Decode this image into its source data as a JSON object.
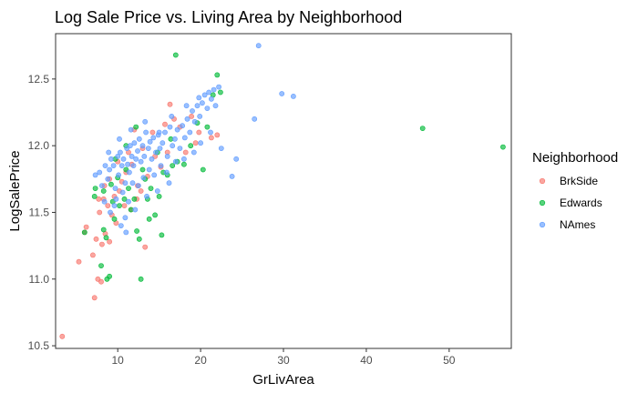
{
  "chart_data": {
    "type": "scatter",
    "title": "Log Sale Price vs. Living Area by Neighborhood",
    "xlabel": "GrLivArea",
    "ylabel": "LogSalePrice",
    "xlim": [
      2.5,
      57.5
    ],
    "ylim": [
      10.48,
      12.84
    ],
    "x_ticks": [
      10,
      20,
      30,
      40,
      50
    ],
    "y_ticks": [
      10.5,
      11.0,
      11.5,
      12.0,
      12.5
    ],
    "y_tick_labels": [
      "10.5",
      "11.0",
      "11.5",
      "12.0",
      "12.5"
    ],
    "grid": false,
    "legend": {
      "title": "Neighborhood",
      "placement": "right"
    },
    "series": [
      {
        "name": "BrkSide",
        "color": "#F8766D",
        "points": [
          [
            3.3,
            10.57
          ],
          [
            5.3,
            11.13
          ],
          [
            6.2,
            11.39
          ],
          [
            6.0,
            11.35
          ],
          [
            7.0,
            11.18
          ],
          [
            7.2,
            10.86
          ],
          [
            7.6,
            11.0
          ],
          [
            8.0,
            10.98
          ],
          [
            7.4,
            11.3
          ],
          [
            8.1,
            11.26
          ],
          [
            8.5,
            11.34
          ],
          [
            9.0,
            11.28
          ],
          [
            7.8,
            11.5
          ],
          [
            8.3,
            11.6
          ],
          [
            8.8,
            11.55
          ],
          [
            9.3,
            11.48
          ],
          [
            7.7,
            11.6
          ],
          [
            8.4,
            11.7
          ],
          [
            9.6,
            11.62
          ],
          [
            10.2,
            11.66
          ],
          [
            9.0,
            11.75
          ],
          [
            10.5,
            11.73
          ],
          [
            11.0,
            11.8
          ],
          [
            11.7,
            11.86
          ],
          [
            12.4,
            11.7
          ],
          [
            12.8,
            11.66
          ],
          [
            13.6,
            11.77
          ],
          [
            14.5,
            11.92
          ],
          [
            15.2,
            11.84
          ],
          [
            16.0,
            11.95
          ],
          [
            16.3,
            12.31
          ],
          [
            16.8,
            12.2
          ],
          [
            17.5,
            12.14
          ],
          [
            18.2,
            11.95
          ],
          [
            19.4,
            12.02
          ],
          [
            10.8,
            11.55
          ],
          [
            11.6,
            11.52
          ],
          [
            12.3,
            11.6
          ],
          [
            13.3,
            11.24
          ],
          [
            9.8,
            11.42
          ],
          [
            14.2,
            12.1
          ],
          [
            15.7,
            12.16
          ],
          [
            12.0,
            12.12
          ],
          [
            13.0,
            11.98
          ],
          [
            18.9,
            12.22
          ],
          [
            19.8,
            12.1
          ],
          [
            21.3,
            12.06
          ],
          [
            22.0,
            12.08
          ],
          [
            11.3,
            11.95
          ],
          [
            10.0,
            11.88
          ]
        ]
      },
      {
        "name": "Edwards",
        "color": "#00BA38",
        "points": [
          [
            6.0,
            11.35
          ],
          [
            7.2,
            11.62
          ],
          [
            7.3,
            11.68
          ],
          [
            8.0,
            11.1
          ],
          [
            8.3,
            11.37
          ],
          [
            8.6,
            11.31
          ],
          [
            8.7,
            11.0
          ],
          [
            9.0,
            11.02
          ],
          [
            8.3,
            11.66
          ],
          [
            9.2,
            11.71
          ],
          [
            9.4,
            11.58
          ],
          [
            9.6,
            11.45
          ],
          [
            10.0,
            11.76
          ],
          [
            10.2,
            11.55
          ],
          [
            10.8,
            11.6
          ],
          [
            11.0,
            11.82
          ],
          [
            11.3,
            11.68
          ],
          [
            11.6,
            11.52
          ],
          [
            12.0,
            11.6
          ],
          [
            12.3,
            11.36
          ],
          [
            12.6,
            11.3
          ],
          [
            12.8,
            11.0
          ],
          [
            13.0,
            11.82
          ],
          [
            13.3,
            11.75
          ],
          [
            13.6,
            11.6
          ],
          [
            14.0,
            11.68
          ],
          [
            14.5,
            11.48
          ],
          [
            15.0,
            11.62
          ],
          [
            15.5,
            11.8
          ],
          [
            16.0,
            11.78
          ],
          [
            16.6,
            11.85
          ],
          [
            17.2,
            11.88
          ],
          [
            17.0,
            12.68
          ],
          [
            18.0,
            11.86
          ],
          [
            18.8,
            12.0
          ],
          [
            19.6,
            12.17
          ],
          [
            20.3,
            11.82
          ],
          [
            20.8,
            12.14
          ],
          [
            21.5,
            12.38
          ],
          [
            22.0,
            12.53
          ],
          [
            22.4,
            12.4
          ],
          [
            46.8,
            12.13
          ],
          [
            56.5,
            11.99
          ],
          [
            12.2,
            12.14
          ],
          [
            11.0,
            12.0
          ],
          [
            9.7,
            11.9
          ],
          [
            14.8,
            11.95
          ],
          [
            16.4,
            12.05
          ],
          [
            13.8,
            11.45
          ],
          [
            15.3,
            11.33
          ]
        ]
      },
      {
        "name": "NAmes",
        "color": "#619CFF",
        "points": [
          [
            7.3,
            11.78
          ],
          [
            7.8,
            11.8
          ],
          [
            8.1,
            11.7
          ],
          [
            8.5,
            11.85
          ],
          [
            8.8,
            11.75
          ],
          [
            9.0,
            11.82
          ],
          [
            9.2,
            11.9
          ],
          [
            9.5,
            11.85
          ],
          [
            9.7,
            11.68
          ],
          [
            10.0,
            11.92
          ],
          [
            10.1,
            11.78
          ],
          [
            10.3,
            11.95
          ],
          [
            10.5,
            11.85
          ],
          [
            10.7,
            11.9
          ],
          [
            10.9,
            11.72
          ],
          [
            11.1,
            11.98
          ],
          [
            11.2,
            11.86
          ],
          [
            11.4,
            11.8
          ],
          [
            11.5,
            12.0
          ],
          [
            11.7,
            11.92
          ],
          [
            11.9,
            11.85
          ],
          [
            12.0,
            12.02
          ],
          [
            12.2,
            11.9
          ],
          [
            12.4,
            11.96
          ],
          [
            12.6,
            12.05
          ],
          [
            12.8,
            11.88
          ],
          [
            13.0,
            12.0
          ],
          [
            13.2,
            11.92
          ],
          [
            13.4,
            12.1
          ],
          [
            13.7,
            11.98
          ],
          [
            13.9,
            12.03
          ],
          [
            14.1,
            11.9
          ],
          [
            14.3,
            12.06
          ],
          [
            14.6,
            11.95
          ],
          [
            14.9,
            12.08
          ],
          [
            15.1,
            11.98
          ],
          [
            15.4,
            12.02
          ],
          [
            15.7,
            12.1
          ],
          [
            16.0,
            11.92
          ],
          [
            16.3,
            12.14
          ],
          [
            16.6,
            12.0
          ],
          [
            16.9,
            12.05
          ],
          [
            17.2,
            12.12
          ],
          [
            17.5,
            11.98
          ],
          [
            17.8,
            12.15
          ],
          [
            18.1,
            12.06
          ],
          [
            18.4,
            12.2
          ],
          [
            18.7,
            12.1
          ],
          [
            19.0,
            12.26
          ],
          [
            19.3,
            12.18
          ],
          [
            19.6,
            12.3
          ],
          [
            19.9,
            12.22
          ],
          [
            20.2,
            12.32
          ],
          [
            20.5,
            12.38
          ],
          [
            20.8,
            12.28
          ],
          [
            21.0,
            12.4
          ],
          [
            21.3,
            12.35
          ],
          [
            21.6,
            12.42
          ],
          [
            22.2,
            12.44
          ],
          [
            23.8,
            11.77
          ],
          [
            24.3,
            11.9
          ],
          [
            26.5,
            12.2
          ],
          [
            27.0,
            12.75
          ],
          [
            29.8,
            12.39
          ],
          [
            31.2,
            12.37
          ],
          [
            8.4,
            11.58
          ],
          [
            9.1,
            11.5
          ],
          [
            9.8,
            11.6
          ],
          [
            10.4,
            11.4
          ],
          [
            10.6,
            11.65
          ],
          [
            11.3,
            11.58
          ],
          [
            11.8,
            11.72
          ],
          [
            12.5,
            11.7
          ],
          [
            13.1,
            11.76
          ],
          [
            13.8,
            11.82
          ],
          [
            14.4,
            11.78
          ],
          [
            15.2,
            11.85
          ],
          [
            15.9,
            11.8
          ],
          [
            17.0,
            11.88
          ],
          [
            18.0,
            11.9
          ],
          [
            19.2,
            11.95
          ],
          [
            20.0,
            12.02
          ],
          [
            21.2,
            12.1
          ],
          [
            22.5,
            11.98
          ],
          [
            9.6,
            11.55
          ],
          [
            10.9,
            11.46
          ],
          [
            12.1,
            11.52
          ],
          [
            13.5,
            11.62
          ],
          [
            14.8,
            11.66
          ],
          [
            16.2,
            11.72
          ],
          [
            8.9,
            11.95
          ],
          [
            10.2,
            12.05
          ],
          [
            11.6,
            12.12
          ],
          [
            13.3,
            12.18
          ],
          [
            15.0,
            12.1
          ],
          [
            16.5,
            12.22
          ],
          [
            18.3,
            12.3
          ],
          [
            19.8,
            12.36
          ],
          [
            21.8,
            12.3
          ],
          [
            11.0,
            11.35
          ]
        ]
      }
    ]
  }
}
